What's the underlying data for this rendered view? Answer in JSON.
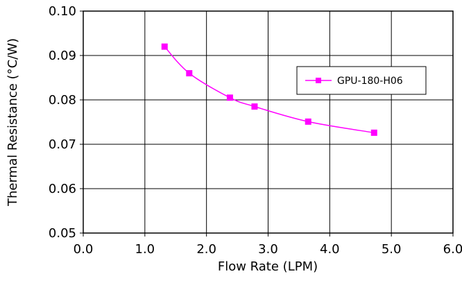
{
  "chart_data": {
    "type": "line",
    "xlabel": "Flow Rate (LPM)",
    "ylabel": "Thermal Resistance (°C/W)",
    "xlim": [
      0.0,
      6.0
    ],
    "ylim": [
      0.05,
      0.1
    ],
    "xticks": [
      "0.0",
      "1.0",
      "2.0",
      "3.0",
      "4.0",
      "5.0",
      "6.0"
    ],
    "yticks": [
      "0.05",
      "0.06",
      "0.07",
      "0.08",
      "0.09",
      "0.10"
    ],
    "grid": true,
    "legend_position": "top-right",
    "series": [
      {
        "name": "GPU-180-H06",
        "color": "#ff00ff",
        "marker": "square",
        "x": [
          1.32,
          1.72,
          2.38,
          2.78,
          3.65,
          4.72
        ],
        "y": [
          0.092,
          0.086,
          0.0805,
          0.0785,
          0.0751,
          0.0726
        ]
      }
    ]
  }
}
